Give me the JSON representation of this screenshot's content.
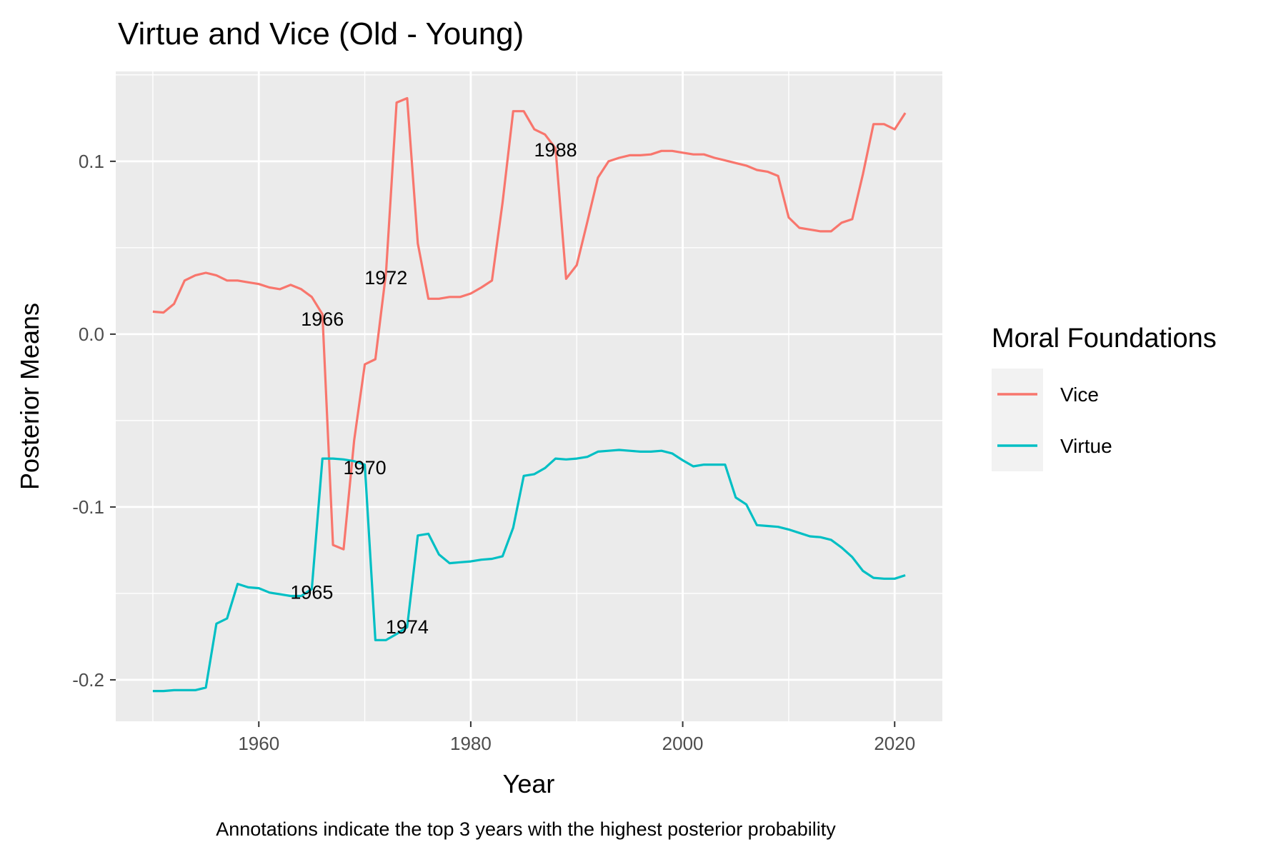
{
  "chart_data": {
    "type": "line",
    "title": "Virtue and Vice (Old - Young)",
    "xlabel": "Year",
    "ylabel": "Posterior Means",
    "caption": "Annotations indicate the top 3 years with the highest posterior probability",
    "xlim": [
      1946.5,
      2024.5
    ],
    "ylim": [
      -0.224,
      0.152
    ],
    "x_ticks": [
      1960,
      1980,
      2000,
      2020
    ],
    "x_tick_labels": [
      "1960",
      "1980",
      "2000",
      "2020"
    ],
    "y_ticks": [
      -0.2,
      -0.1,
      0.0,
      0.1
    ],
    "y_tick_labels": [
      "-0.2",
      "-0.1",
      "0.0",
      "0.1"
    ],
    "grid": true,
    "legend": {
      "title": "Moral Foundations",
      "position": "right"
    },
    "series": [
      {
        "name": "Vice",
        "color": "#F8766D",
        "points": [
          [
            1950,
            0.013
          ],
          [
            1951,
            0.0125
          ],
          [
            1952,
            0.0175
          ],
          [
            1953,
            0.031
          ],
          [
            1954,
            0.034
          ],
          [
            1955,
            0.0355
          ],
          [
            1956,
            0.034
          ],
          [
            1957,
            0.031
          ],
          [
            1958,
            0.031
          ],
          [
            1959,
            0.03
          ],
          [
            1960,
            0.029
          ],
          [
            1961,
            0.027
          ],
          [
            1962,
            0.026
          ],
          [
            1963,
            0.0285
          ],
          [
            1964,
            0.026
          ],
          [
            1965,
            0.0215
          ],
          [
            1966,
            0.0115
          ],
          [
            1967,
            -0.122
          ],
          [
            1968,
            -0.1245
          ],
          [
            1969,
            -0.0615
          ],
          [
            1970,
            -0.0175
          ],
          [
            1971,
            -0.0145
          ],
          [
            1972,
            0.0355
          ],
          [
            1973,
            0.134
          ],
          [
            1974,
            0.1365
          ],
          [
            1975,
            0.0525
          ],
          [
            1976,
            0.0205
          ],
          [
            1977,
            0.0205
          ],
          [
            1978,
            0.0215
          ],
          [
            1979,
            0.0215
          ],
          [
            1980,
            0.0235
          ],
          [
            1981,
            0.027
          ],
          [
            1982,
            0.031
          ],
          [
            1983,
            0.076
          ],
          [
            1984,
            0.129
          ],
          [
            1985,
            0.129
          ],
          [
            1986,
            0.1185
          ],
          [
            1987,
            0.1155
          ],
          [
            1988,
            0.1075
          ],
          [
            1989,
            0.032
          ],
          [
            1990,
            0.04
          ],
          [
            1991,
            0.065
          ],
          [
            1992,
            0.0905
          ],
          [
            1993,
            0.1
          ],
          [
            1994,
            0.102
          ],
          [
            1995,
            0.1035
          ],
          [
            1996,
            0.1035
          ],
          [
            1997,
            0.104
          ],
          [
            1998,
            0.106
          ],
          [
            1999,
            0.106
          ],
          [
            2000,
            0.105
          ],
          [
            2001,
            0.104
          ],
          [
            2002,
            0.104
          ],
          [
            2003,
            0.102
          ],
          [
            2004,
            0.1005
          ],
          [
            2005,
            0.099
          ],
          [
            2006,
            0.0975
          ],
          [
            2007,
            0.095
          ],
          [
            2008,
            0.094
          ],
          [
            2009,
            0.0915
          ],
          [
            2010,
            0.0675
          ],
          [
            2011,
            0.0615
          ],
          [
            2012,
            0.0605
          ],
          [
            2013,
            0.0595
          ],
          [
            2014,
            0.0595
          ],
          [
            2015,
            0.0645
          ],
          [
            2016,
            0.0665
          ],
          [
            2017,
            0.0925
          ],
          [
            2018,
            0.1215
          ],
          [
            2019,
            0.1215
          ],
          [
            2020,
            0.1185
          ],
          [
            2021,
            0.128
          ]
        ]
      },
      {
        "name": "Virtue",
        "color": "#00BFC4",
        "points": [
          [
            1950,
            -0.2065
          ],
          [
            1951,
            -0.2065
          ],
          [
            1952,
            -0.206
          ],
          [
            1953,
            -0.206
          ],
          [
            1954,
            -0.206
          ],
          [
            1955,
            -0.2045
          ],
          [
            1956,
            -0.1675
          ],
          [
            1957,
            -0.1645
          ],
          [
            1958,
            -0.1445
          ],
          [
            1959,
            -0.1465
          ],
          [
            1960,
            -0.147
          ],
          [
            1961,
            -0.1495
          ],
          [
            1962,
            -0.1505
          ],
          [
            1963,
            -0.1515
          ],
          [
            1964,
            -0.1515
          ],
          [
            1965,
            -0.1475
          ],
          [
            1966,
            -0.072
          ],
          [
            1967,
            -0.072
          ],
          [
            1968,
            -0.0725
          ],
          [
            1969,
            -0.0735
          ],
          [
            1970,
            -0.0755
          ],
          [
            1971,
            -0.177
          ],
          [
            1972,
            -0.177
          ],
          [
            1973,
            -0.1735
          ],
          [
            1974,
            -0.1695
          ],
          [
            1975,
            -0.1165
          ],
          [
            1976,
            -0.1155
          ],
          [
            1977,
            -0.1275
          ],
          [
            1978,
            -0.1325
          ],
          [
            1979,
            -0.132
          ],
          [
            1980,
            -0.1315
          ],
          [
            1981,
            -0.1305
          ],
          [
            1982,
            -0.13
          ],
          [
            1983,
            -0.1285
          ],
          [
            1984,
            -0.112
          ],
          [
            1985,
            -0.082
          ],
          [
            1986,
            -0.081
          ],
          [
            1987,
            -0.0775
          ],
          [
            1988,
            -0.072
          ],
          [
            1989,
            -0.0725
          ],
          [
            1990,
            -0.072
          ],
          [
            1991,
            -0.071
          ],
          [
            1992,
            -0.068
          ],
          [
            1993,
            -0.0675
          ],
          [
            1994,
            -0.067
          ],
          [
            1995,
            -0.0675
          ],
          [
            1996,
            -0.068
          ],
          [
            1997,
            -0.068
          ],
          [
            1998,
            -0.0675
          ],
          [
            1999,
            -0.069
          ],
          [
            2000,
            -0.073
          ],
          [
            2001,
            -0.0765
          ],
          [
            2002,
            -0.0755
          ],
          [
            2003,
            -0.0755
          ],
          [
            2004,
            -0.0755
          ],
          [
            2005,
            -0.0945
          ],
          [
            2006,
            -0.0985
          ],
          [
            2007,
            -0.1105
          ],
          [
            2008,
            -0.111
          ],
          [
            2009,
            -0.1115
          ],
          [
            2010,
            -0.113
          ],
          [
            2011,
            -0.115
          ],
          [
            2012,
            -0.117
          ],
          [
            2013,
            -0.1175
          ],
          [
            2014,
            -0.119
          ],
          [
            2015,
            -0.1235
          ],
          [
            2016,
            -0.129
          ],
          [
            2017,
            -0.137
          ],
          [
            2018,
            -0.141
          ],
          [
            2019,
            -0.1415
          ],
          [
            2020,
            -0.1415
          ],
          [
            2021,
            -0.1395
          ]
        ]
      }
    ],
    "annotations": [
      {
        "text": "1966",
        "x": 1966,
        "y": 0.009
      },
      {
        "text": "1972",
        "x": 1972,
        "y": 0.033
      },
      {
        "text": "1988",
        "x": 1988,
        "y": 0.107
      },
      {
        "text": "1970",
        "x": 1970,
        "y": -0.077
      },
      {
        "text": "1965",
        "x": 1965,
        "y": -0.149
      },
      {
        "text": "1974",
        "x": 1974,
        "y": -0.169
      }
    ]
  }
}
